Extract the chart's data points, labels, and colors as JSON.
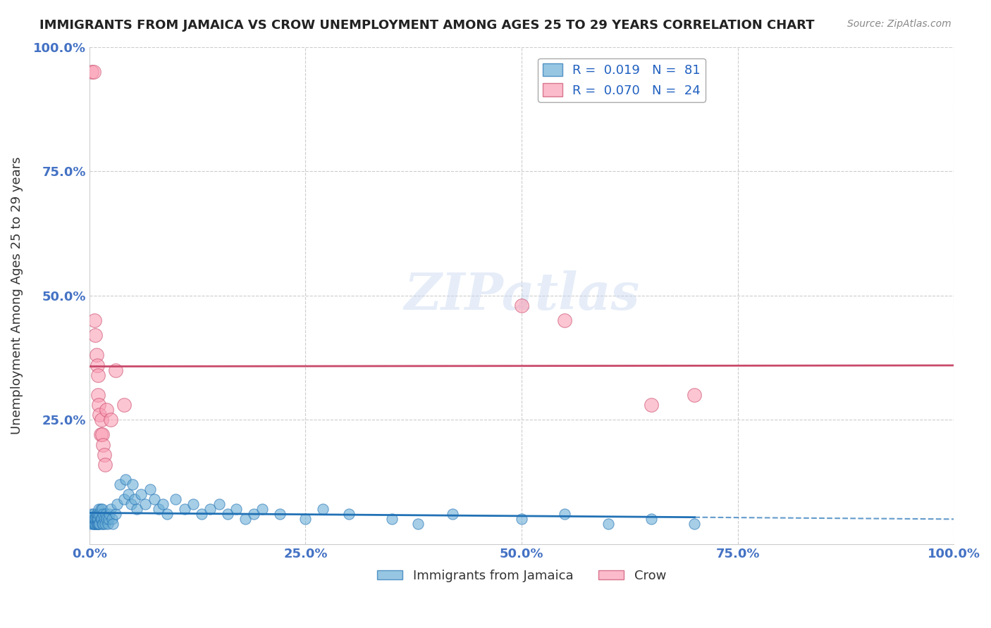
{
  "title": "IMMIGRANTS FROM JAMAICA VS CROW UNEMPLOYMENT AMONG AGES 25 TO 29 YEARS CORRELATION CHART",
  "source": "Source: ZipAtlas.com",
  "xlabel": "",
  "ylabel": "Unemployment Among Ages 25 to 29 years",
  "xlim": [
    0.0,
    1.0
  ],
  "ylim": [
    0.0,
    1.0
  ],
  "xticks": [
    0.0,
    0.25,
    0.5,
    0.75,
    1.0
  ],
  "yticks": [
    0.0,
    0.25,
    0.5,
    0.75,
    1.0
  ],
  "xticklabels": [
    "0.0%",
    "25.0%",
    "50.0%",
    "75.0%",
    "100.0%"
  ],
  "yticklabels": [
    "",
    "25.0%",
    "50.0%",
    "75.0%",
    "100.0%"
  ],
  "blue_color": "#6baed6",
  "pink_color": "#fa9fb5",
  "blue_line_color": "#2171b5",
  "pink_line_color": "#c9496a",
  "legend_blue_text": "R =  0.019   N =  81",
  "legend_pink_text": "R =  0.070   N =  24",
  "legend_R_blue": "0.019",
  "legend_N_blue": "81",
  "legend_R_pink": "0.070",
  "legend_N_pink": "24",
  "watermark": "ZIPatlas",
  "blue_points_x": [
    0.002,
    0.003,
    0.003,
    0.004,
    0.004,
    0.005,
    0.005,
    0.005,
    0.006,
    0.006,
    0.007,
    0.007,
    0.008,
    0.008,
    0.008,
    0.009,
    0.009,
    0.01,
    0.01,
    0.01,
    0.011,
    0.011,
    0.012,
    0.012,
    0.013,
    0.013,
    0.014,
    0.015,
    0.015,
    0.016,
    0.016,
    0.017,
    0.018,
    0.019,
    0.02,
    0.021,
    0.022,
    0.023,
    0.025,
    0.026,
    0.027,
    0.03,
    0.032,
    0.035,
    0.04,
    0.042,
    0.045,
    0.048,
    0.05,
    0.052,
    0.055,
    0.06,
    0.065,
    0.07,
    0.075,
    0.08,
    0.085,
    0.09,
    0.1,
    0.11,
    0.12,
    0.13,
    0.14,
    0.15,
    0.16,
    0.17,
    0.18,
    0.19,
    0.2,
    0.22,
    0.25,
    0.27,
    0.3,
    0.35,
    0.38,
    0.42,
    0.5,
    0.55,
    0.6,
    0.65,
    0.7
  ],
  "blue_points_y": [
    0.04,
    0.05,
    0.06,
    0.04,
    0.05,
    0.04,
    0.05,
    0.06,
    0.04,
    0.05,
    0.04,
    0.05,
    0.04,
    0.05,
    0.06,
    0.04,
    0.05,
    0.04,
    0.05,
    0.06,
    0.04,
    0.07,
    0.04,
    0.06,
    0.05,
    0.07,
    0.05,
    0.04,
    0.07,
    0.04,
    0.06,
    0.05,
    0.04,
    0.06,
    0.05,
    0.04,
    0.05,
    0.06,
    0.07,
    0.05,
    0.04,
    0.06,
    0.08,
    0.12,
    0.09,
    0.13,
    0.1,
    0.08,
    0.12,
    0.09,
    0.07,
    0.1,
    0.08,
    0.11,
    0.09,
    0.07,
    0.08,
    0.06,
    0.09,
    0.07,
    0.08,
    0.06,
    0.07,
    0.08,
    0.06,
    0.07,
    0.05,
    0.06,
    0.07,
    0.06,
    0.05,
    0.07,
    0.06,
    0.05,
    0.04,
    0.06,
    0.05,
    0.06,
    0.04,
    0.05,
    0.04
  ],
  "pink_points_x": [
    0.003,
    0.005,
    0.006,
    0.007,
    0.008,
    0.009,
    0.01,
    0.01,
    0.011,
    0.012,
    0.013,
    0.014,
    0.015,
    0.016,
    0.017,
    0.018,
    0.02,
    0.025,
    0.03,
    0.04,
    0.5,
    0.55,
    0.65,
    0.7
  ],
  "pink_points_y": [
    0.95,
    0.95,
    0.45,
    0.42,
    0.38,
    0.36,
    0.34,
    0.3,
    0.28,
    0.26,
    0.22,
    0.25,
    0.22,
    0.2,
    0.18,
    0.16,
    0.27,
    0.25,
    0.35,
    0.28,
    0.48,
    0.45,
    0.28,
    0.3
  ],
  "bg_color": "#ffffff",
  "grid_color": "#cccccc",
  "tick_color_x": "#4472c4",
  "tick_color_y": "#4472c4"
}
